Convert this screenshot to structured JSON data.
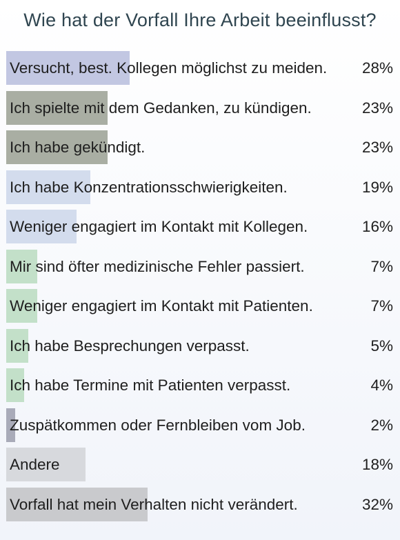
{
  "chart_data": {
    "type": "bar",
    "orientation": "horizontal",
    "title": "Wie hat der Vorfall Ihre Arbeit beeinflusst?",
    "xlim": [
      0,
      100
    ],
    "categories": [
      "Versucht, best. Kollegen möglichst zu meiden.",
      "Ich spielte mit dem Gedanken, zu kündigen.",
      "Ich habe gekündigt.",
      "Ich habe Konzentrationsschwierigkeiten.",
      "Weniger engagiert im Kontakt mit Kollegen.",
      "Mir sind öfter medizinische Fehler passiert.",
      "Weniger engagiert im Kontakt mit Patienten.",
      "Ich habe Besprechungen verpasst.",
      "Ich habe Termine mit Patienten verpasst.",
      "Zuspätkommen oder Fernbleiben vom Job.",
      "Andere",
      "Vorfall hat mein Verhalten nicht verändert."
    ],
    "values": [
      28,
      23,
      23,
      19,
      16,
      7,
      7,
      5,
      4,
      2,
      18,
      32
    ],
    "value_labels": [
      "28%",
      "23%",
      "23%",
      "19%",
      "16%",
      "7%",
      "7%",
      "5%",
      "4%",
      "2%",
      "18%",
      "32%"
    ],
    "colors": [
      "#c2c7e2",
      "#a9aea3",
      "#a9aea3",
      "#d3dced",
      "#d3dced",
      "#c3e0c9",
      "#c3e0c9",
      "#c3e0c9",
      "#c3e0c9",
      "#a9abb9",
      "#d7d9dd",
      "#c9cacd"
    ],
    "grid": false,
    "legend": "none"
  }
}
